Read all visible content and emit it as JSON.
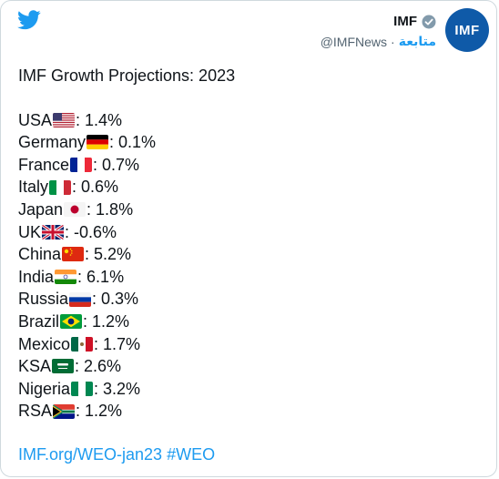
{
  "header": {
    "account_name": "IMF",
    "handle": "@IMFNews",
    "separator": "·",
    "follow_label": "متابعة",
    "avatar_text": "IMF",
    "brand_color": "#1d9bf0"
  },
  "tweet": {
    "title": "IMF Growth Projections: 2023",
    "countries": [
      {
        "name": "USA",
        "value": ": 1.4%",
        "flag": "us-flag-icon"
      },
      {
        "name": "Germany",
        "value": ": 0.1%",
        "flag": "germany-flag-icon"
      },
      {
        "name": "France",
        "value": ": 0.7%",
        "flag": "france-flag-icon"
      },
      {
        "name": "Italy",
        "value": ": 0.6%",
        "flag": "italy-flag-icon"
      },
      {
        "name": "Japan",
        "value": ": 1.8%",
        "flag": "japan-flag-icon"
      },
      {
        "name": "UK",
        "value": ": -0.6%",
        "flag": "uk-flag-icon"
      },
      {
        "name": "China",
        "value": ": 5.2%",
        "flag": "china-flag-icon"
      },
      {
        "name": "India",
        "value": ": 6.1%",
        "flag": "india-flag-icon"
      },
      {
        "name": "Russia",
        "value": ": 0.3%",
        "flag": "russia-flag-icon"
      },
      {
        "name": "Brazil",
        "value": ": 1.2%",
        "flag": "brazil-flag-icon"
      },
      {
        "name": "Mexico",
        "value": ": 1.7%",
        "flag": "mexico-flag-icon"
      },
      {
        "name": "KSA",
        "value": ": 2.6%",
        "flag": "saudi-flag-icon"
      },
      {
        "name": "Nigeria",
        "value": ": 3.2%",
        "flag": "nigeria-flag-icon"
      },
      {
        "name": "RSA",
        "value": ": 1.2%",
        "flag": "south-africa-flag-icon"
      }
    ],
    "link_text": "IMF.org/WEO-jan23",
    "hashtag": "#WEO"
  }
}
